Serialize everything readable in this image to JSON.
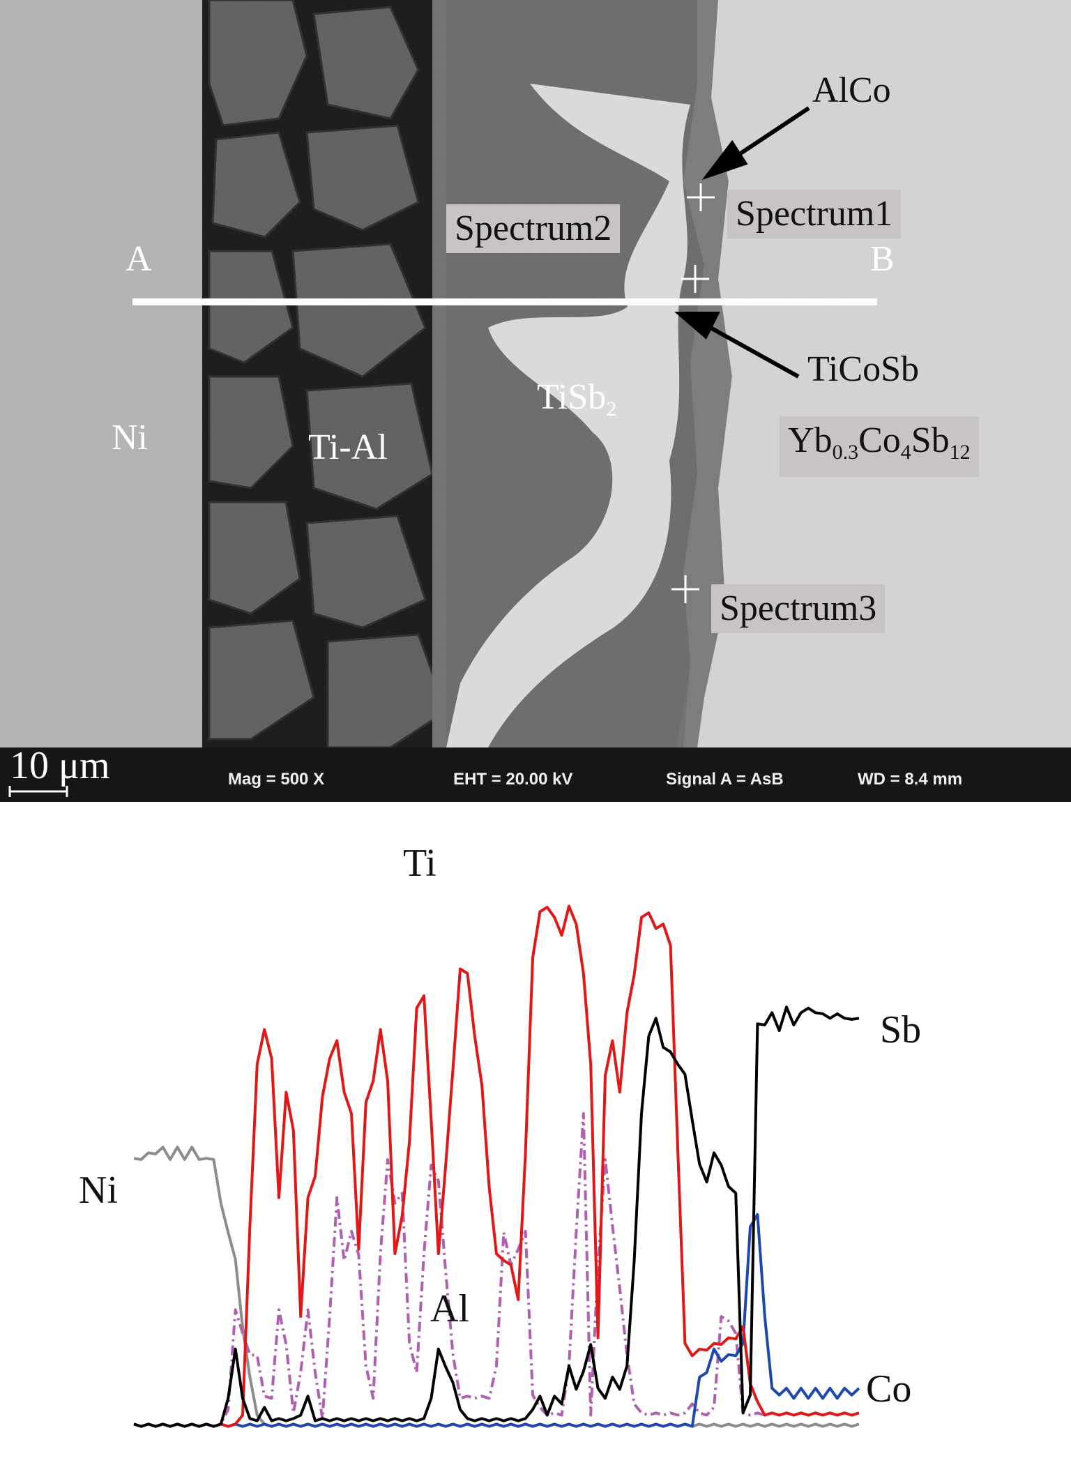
{
  "micrograph": {
    "labels": {
      "alco": "AlCo",
      "spectrum1": "Spectrum1",
      "spectrum2": "Spectrum2",
      "spectrum3": "Spectrum3",
      "point_a": "A",
      "point_b": "B",
      "ticosb": "TiCoSb",
      "tisb2_main": "TiSb",
      "tisb2_sub": "2",
      "ni": "Ni",
      "tial": "Ti-Al",
      "yb_main": "Yb",
      "yb_sub1": "0.3",
      "co_main": "Co",
      "co_sub": "4",
      "sb_main": "Sb",
      "sb_sub": "12"
    },
    "info_bar": {
      "scale": "10 μm",
      "mag": "Mag =    500 X",
      "eht": "EHT = 20.00 kV",
      "signal": "Signal A = AsB",
      "wd": "WD =  8.4 mm"
    },
    "colors": {
      "ni_region": "#b3b3b3",
      "tial_region": "#5c5c5c",
      "tisb2_region": "#dcdcdc",
      "skutterudite": "#d4d4d4",
      "infobar": "#161616"
    }
  },
  "line_scan": {
    "labels": {
      "ti": "Ti",
      "sb": "Sb",
      "ni": "Ni",
      "al": "Al",
      "co": "Co"
    },
    "colors": {
      "Ti": "#e01818",
      "Sb": "#000000",
      "Ni": "#8c8c8c",
      "Al": "#b060b0",
      "Co": "#1d48b0"
    },
    "chart_data": {
      "type": "line",
      "x": [
        0,
        0.01,
        0.02,
        0.03,
        0.04,
        0.05,
        0.06,
        0.07,
        0.08,
        0.09,
        0.1,
        0.11,
        0.12,
        0.13,
        0.14,
        0.15,
        0.16,
        0.17,
        0.18,
        0.19,
        0.2,
        0.21,
        0.22,
        0.23,
        0.24,
        0.25,
        0.26,
        0.27,
        0.28,
        0.29,
        0.3,
        0.31,
        0.32,
        0.33,
        0.34,
        0.35,
        0.36,
        0.37,
        0.38,
        0.39,
        0.4,
        0.41,
        0.42,
        0.43,
        0.44,
        0.45,
        0.46,
        0.47,
        0.48,
        0.49,
        0.5,
        0.51,
        0.52,
        0.53,
        0.54,
        0.55,
        0.56,
        0.57,
        0.58,
        0.59,
        0.6,
        0.61,
        0.62,
        0.63,
        0.64,
        0.65,
        0.66,
        0.67,
        0.68,
        0.69,
        0.7,
        0.71,
        0.72,
        0.73,
        0.74,
        0.75,
        0.76,
        0.77,
        0.78,
        0.79,
        0.8,
        0.81,
        0.82,
        0.83,
        0.84,
        0.85,
        0.86,
        0.87,
        0.88,
        0.89,
        0.9,
        0.91,
        0.92,
        0.93,
        0.94,
        0.95,
        0.96,
        0.97,
        0.98,
        0.99,
        1
      ],
      "series": [
        {
          "name": "Ti",
          "values": [
            0,
            0,
            0,
            0,
            0,
            0,
            0,
            0,
            0,
            0,
            0,
            0,
            0,
            0,
            0,
            0.02,
            0.35,
            0.65,
            0.7,
            0.66,
            0.4,
            0.6,
            0.52,
            0.2,
            0.4,
            0.45,
            0.58,
            0.66,
            0.68,
            0.6,
            0.55,
            0.32,
            0.57,
            0.62,
            0.7,
            0.62,
            0.3,
            0.38,
            0.5,
            0.75,
            0.76,
            0.55,
            0.3,
            0.47,
            0.63,
            0.82,
            0.8,
            0.7,
            0.6,
            0.43,
            0.3,
            0.3,
            0.28,
            0.23,
            0.48,
            0.84,
            0.91,
            0.93,
            0.9,
            0.88,
            0.92,
            0.9,
            0.8,
            0.65,
            0.15,
            0.63,
            0.68,
            0.6,
            0.73,
            0.81,
            0.9,
            0.92,
            0.88,
            0.9,
            0.85,
            0.5,
            0.14,
            0.13,
            0.13,
            0.14,
            0.14,
            0.15,
            0.15,
            0.16,
            0.17,
            0.08,
            0.04,
            0.02,
            0.02,
            0.02,
            0.02,
            0.02,
            0.02,
            0.02,
            0.02,
            0.02,
            0.02,
            0.02,
            0.02,
            0.02,
            0.02
          ]
        },
        {
          "name": "Sb",
          "values": [
            0,
            0,
            0,
            0,
            0,
            0,
            0,
            0,
            0,
            0,
            0,
            0,
            0,
            0.05,
            0.13,
            0.05,
            0.01,
            0.01,
            0.03,
            0.01,
            0.01,
            0.01,
            0.01,
            0.02,
            0.05,
            0.01,
            0.01,
            0.01,
            0.01,
            0.01,
            0.01,
            0.01,
            0.01,
            0.01,
            0.01,
            0.01,
            0.01,
            0.01,
            0.01,
            0.01,
            0.01,
            0.05,
            0.13,
            0.11,
            0.07,
            0.03,
            0.01,
            0.01,
            0.01,
            0.01,
            0.01,
            0.01,
            0.01,
            0.01,
            0.01,
            0.03,
            0.05,
            0.02,
            0.05,
            0.04,
            0.1,
            0.07,
            0.09,
            0.15,
            0.06,
            0.05,
            0.08,
            0.07,
            0.1,
            0.3,
            0.55,
            0.7,
            0.72,
            0.68,
            0.66,
            0.65,
            0.62,
            0.55,
            0.46,
            0.44,
            0.48,
            0.47,
            0.42,
            0.42,
            0.02,
            0.06,
            0.71,
            0.72,
            0.73,
            0.71,
            0.74,
            0.72,
            0.73,
            0.75,
            0.73,
            0.74,
            0.72,
            0.74,
            0.72,
            0.73,
            0.72
          ]
        },
        {
          "name": "Ni",
          "values": [
            0.47,
            0.48,
            0.48,
            0.49,
            0.49,
            0.48,
            0.49,
            0.48,
            0.49,
            0.48,
            0.47,
            0.48,
            0.39,
            0.35,
            0.29,
            0.18,
            0.08,
            0.02,
            0,
            0,
            0,
            0,
            0,
            0,
            0,
            0,
            0,
            0,
            0,
            0,
            0,
            0,
            0,
            0,
            0,
            0,
            0,
            0,
            0,
            0,
            0,
            0,
            0,
            0,
            0,
            0,
            0,
            0,
            0,
            0,
            0,
            0,
            0,
            0,
            0,
            0,
            0,
            0,
            0,
            0,
            0,
            0,
            0,
            0,
            0,
            0,
            0,
            0,
            0,
            0,
            0,
            0,
            0,
            0,
            0,
            0,
            0,
            0,
            0,
            0,
            0,
            0,
            0,
            0,
            0,
            0,
            0,
            0,
            0,
            0,
            0,
            0,
            0,
            0,
            0,
            0,
            0,
            0,
            0,
            0,
            0
          ]
        },
        {
          "name": "Al",
          "values": [
            0,
            0,
            0,
            0,
            0,
            0,
            0,
            0,
            0,
            0,
            0,
            0,
            0,
            0.03,
            0.2,
            0.17,
            0.12,
            0.13,
            0.05,
            0.05,
            0.2,
            0.15,
            0.02,
            0.1,
            0.2,
            0.1,
            0.01,
            0.2,
            0.4,
            0.3,
            0.34,
            0.31,
            0.1,
            0.05,
            0.3,
            0.48,
            0.39,
            0.42,
            0.14,
            0.1,
            0.3,
            0.47,
            0.43,
            0.28,
            0.12,
            0.05,
            0.05,
            0.05,
            0.05,
            0.05,
            0.1,
            0.35,
            0.28,
            0.32,
            0.34,
            0.06,
            0.03,
            0.02,
            0.02,
            0.02,
            0.1,
            0.35,
            0.55,
            0.02,
            0.28,
            0.48,
            0.35,
            0.25,
            0.12,
            0.04,
            0.02,
            0.02,
            0.02,
            0.02,
            0.02,
            0.02,
            0.02,
            0.04,
            0.02,
            0.02,
            0.03,
            0.2,
            0.18,
            0.17,
            0.02,
            0.02,
            0.02,
            0.02,
            0.02,
            0.02,
            0.02,
            0.02,
            0.02,
            0.02,
            0.02,
            0.02,
            0.02,
            0.02,
            0.02,
            0.02,
            0.02
          ]
        },
        {
          "name": "Co",
          "values": [
            0,
            0,
            0,
            0,
            0,
            0,
            0,
            0,
            0,
            0,
            0,
            0,
            0,
            0,
            0,
            0,
            0,
            0,
            0,
            0,
            0,
            0,
            0,
            0,
            0,
            0,
            0,
            0,
            0,
            0,
            0,
            0,
            0,
            0,
            0,
            0,
            0,
            0,
            0,
            0,
            0,
            0,
            0,
            0,
            0,
            0,
            0,
            0,
            0,
            0,
            0,
            0,
            0,
            0,
            0,
            0,
            0,
            0,
            0,
            0,
            0,
            0,
            0,
            0,
            0,
            0,
            0,
            0,
            0,
            0,
            0,
            0,
            0,
            0,
            0,
            0,
            0,
            0,
            0.08,
            0.1,
            0.13,
            0.12,
            0.12,
            0.13,
            0.14,
            0.36,
            0.37,
            0.2,
            0.06,
            0.06,
            0.06,
            0.05,
            0.06,
            0.05,
            0.06,
            0.05,
            0.06,
            0.05,
            0.06,
            0.06,
            0.06
          ]
        }
      ],
      "grid": false,
      "legend": "inline labels"
    }
  }
}
